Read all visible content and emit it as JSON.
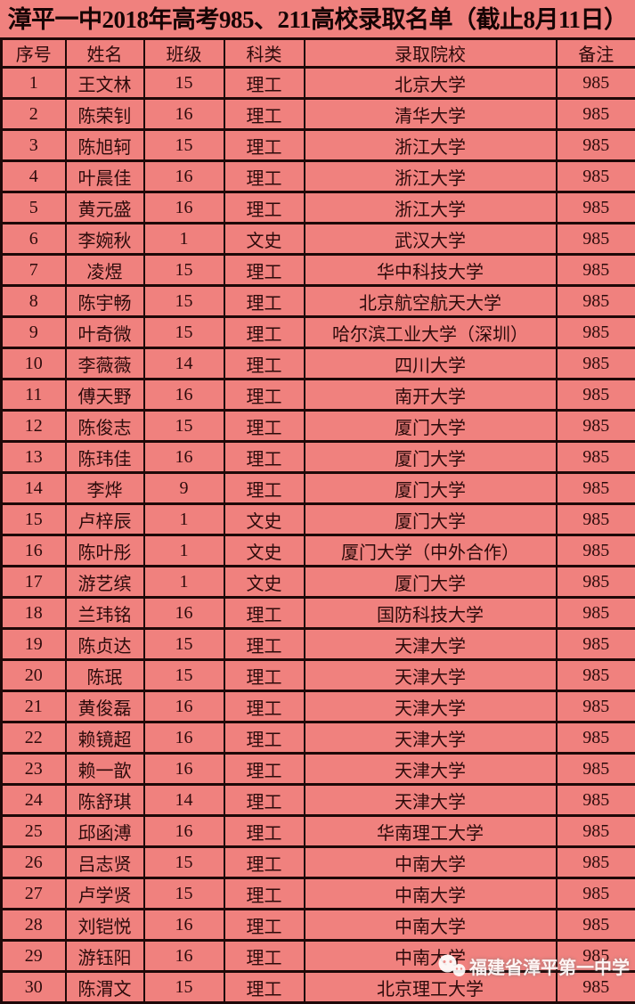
{
  "title": "漳平一中2018年高考985、211高校录取名单（截止8月11日）",
  "table": {
    "headers": [
      "序号",
      "姓名",
      "班级",
      "科类",
      "录取院校",
      "备注"
    ],
    "rows": [
      [
        "1",
        "王文林",
        "15",
        "理工",
        "北京大学",
        "985"
      ],
      [
        "2",
        "陈荣钊",
        "16",
        "理工",
        "清华大学",
        "985"
      ],
      [
        "3",
        "陈旭轲",
        "15",
        "理工",
        "浙江大学",
        "985"
      ],
      [
        "4",
        "叶晨佳",
        "16",
        "理工",
        "浙江大学",
        "985"
      ],
      [
        "5",
        "黄元盛",
        "16",
        "理工",
        "浙江大学",
        "985"
      ],
      [
        "6",
        "李婉秋",
        "1",
        "文史",
        "武汉大学",
        "985"
      ],
      [
        "7",
        "凌煜",
        "15",
        "理工",
        "华中科技大学",
        "985"
      ],
      [
        "8",
        "陈宇畅",
        "15",
        "理工",
        "北京航空航天大学",
        "985"
      ],
      [
        "9",
        "叶奇微",
        "15",
        "理工",
        "哈尔滨工业大学（深圳）",
        "985"
      ],
      [
        "10",
        "李薇薇",
        "14",
        "理工",
        "四川大学",
        "985"
      ],
      [
        "11",
        "傅天野",
        "16",
        "理工",
        "南开大学",
        "985"
      ],
      [
        "12",
        "陈俊志",
        "15",
        "理工",
        "厦门大学",
        "985"
      ],
      [
        "13",
        "陈玮佳",
        "16",
        "理工",
        "厦门大学",
        "985"
      ],
      [
        "14",
        "李烨",
        "9",
        "理工",
        "厦门大学",
        "985"
      ],
      [
        "15",
        "卢梓辰",
        "1",
        "文史",
        "厦门大学",
        "985"
      ],
      [
        "16",
        "陈叶彤",
        "1",
        "文史",
        "厦门大学（中外合作）",
        "985"
      ],
      [
        "17",
        "游艺缤",
        "1",
        "文史",
        "厦门大学",
        "985"
      ],
      [
        "18",
        "兰玮铭",
        "16",
        "理工",
        "国防科技大学",
        "985"
      ],
      [
        "19",
        "陈贞达",
        "15",
        "理工",
        "天津大学",
        "985"
      ],
      [
        "20",
        "陈珉",
        "15",
        "理工",
        "天津大学",
        "985"
      ],
      [
        "21",
        "黄俊磊",
        "16",
        "理工",
        "天津大学",
        "985"
      ],
      [
        "22",
        "赖镜超",
        "16",
        "理工",
        "天津大学",
        "985"
      ],
      [
        "23",
        "赖一歆",
        "16",
        "理工",
        "天津大学",
        "985"
      ],
      [
        "24",
        "陈舒琪",
        "14",
        "理工",
        "天津大学",
        "985"
      ],
      [
        "25",
        "邱函溥",
        "16",
        "理工",
        "华南理工大学",
        "985"
      ],
      [
        "26",
        "吕志贤",
        "15",
        "理工",
        "中南大学",
        "985"
      ],
      [
        "27",
        "卢学贤",
        "15",
        "理工",
        "中南大学",
        "985"
      ],
      [
        "28",
        "刘铠悦",
        "16",
        "理工",
        "中南大学",
        "985"
      ],
      [
        "29",
        "游钰阳",
        "16",
        "理工",
        "中南大学",
        "985"
      ],
      [
        "30",
        "陈渭文",
        "15",
        "理工",
        "北京理工大学",
        "985"
      ]
    ]
  },
  "watermark": {
    "icon": "wechat-icon",
    "text": "福建省漳平第一中学"
  },
  "colors": {
    "background": "#f0817e",
    "border": "#1e0808",
    "table_text": "#2d0b0b",
    "title_text": "#160404",
    "watermark_text": "#ffffff"
  }
}
